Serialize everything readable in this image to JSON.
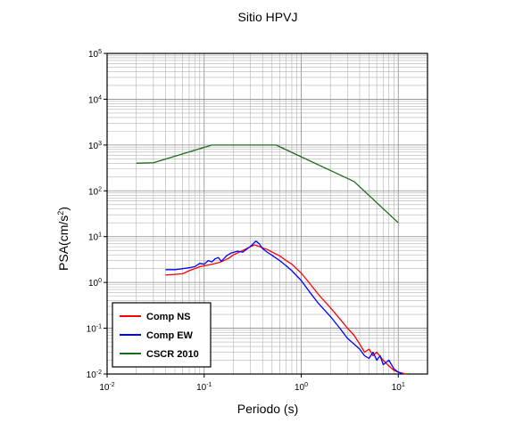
{
  "chart_data": {
    "type": "line",
    "title": "Sitio HPVJ",
    "xlabel": "Periodo (s)",
    "ylabel": {
      "base": "PSA(cm/s",
      "exp": "2",
      "close": ")"
    },
    "xscale": "log",
    "yscale": "log",
    "xlim": [
      0.01,
      20
    ],
    "ylim": [
      0.01,
      100000
    ],
    "grid": true,
    "legend_position": "bottom-left",
    "x_ticks": [
      {
        "base": "10",
        "exp": "-2",
        "value": 0.01
      },
      {
        "base": "10",
        "exp": "-1",
        "value": 0.1
      },
      {
        "base": "10",
        "exp": "0",
        "value": 1
      },
      {
        "base": "10",
        "exp": "1",
        "value": 10
      }
    ],
    "y_ticks": [
      {
        "base": "10",
        "exp": "-2",
        "value": 0.01
      },
      {
        "base": "10",
        "exp": "-1",
        "value": 0.1
      },
      {
        "base": "10",
        "exp": "0",
        "value": 1
      },
      {
        "base": "10",
        "exp": "1",
        "value": 10
      },
      {
        "base": "10",
        "exp": "2",
        "value": 100
      },
      {
        "base": "10",
        "exp": "3",
        "value": 1000
      },
      {
        "base": "10",
        "exp": "4",
        "value": 10000
      },
      {
        "base": "10",
        "exp": "5",
        "value": 100000
      }
    ],
    "series": [
      {
        "name": "Comp NS",
        "color": "#ff0000",
        "points": [
          [
            0.04,
            1.45
          ],
          [
            0.05,
            1.5
          ],
          [
            0.06,
            1.55
          ],
          [
            0.07,
            1.8
          ],
          [
            0.08,
            2.0
          ],
          [
            0.09,
            2.2
          ],
          [
            0.1,
            2.3
          ],
          [
            0.12,
            2.5
          ],
          [
            0.14,
            2.7
          ],
          [
            0.16,
            3.0
          ],
          [
            0.18,
            3.4
          ],
          [
            0.2,
            4.0
          ],
          [
            0.23,
            4.6
          ],
          [
            0.26,
            5.2
          ],
          [
            0.3,
            6.0
          ],
          [
            0.33,
            6.6
          ],
          [
            0.36,
            6.2
          ],
          [
            0.4,
            5.7
          ],
          [
            0.45,
            5.2
          ],
          [
            0.5,
            4.6
          ],
          [
            0.6,
            3.8
          ],
          [
            0.7,
            3.0
          ],
          [
            0.8,
            2.5
          ],
          [
            1.0,
            1.6
          ],
          [
            1.2,
            1.0
          ],
          [
            1.5,
            0.55
          ],
          [
            2.0,
            0.28
          ],
          [
            2.5,
            0.16
          ],
          [
            3.0,
            0.1
          ],
          [
            3.5,
            0.07
          ],
          [
            4.0,
            0.045
          ],
          [
            4.5,
            0.03
          ],
          [
            5.0,
            0.035
          ],
          [
            5.5,
            0.025
          ],
          [
            6.0,
            0.03
          ],
          [
            7.0,
            0.02
          ],
          [
            8.0,
            0.015
          ],
          [
            9.0,
            0.012
          ],
          [
            10.0,
            0.011
          ],
          [
            12.0,
            0.01
          ]
        ]
      },
      {
        "name": "Comp EW",
        "color": "#0000ff",
        "points": [
          [
            0.04,
            1.9
          ],
          [
            0.05,
            1.9
          ],
          [
            0.06,
            2.0
          ],
          [
            0.07,
            2.1
          ],
          [
            0.08,
            2.2
          ],
          [
            0.09,
            2.6
          ],
          [
            0.1,
            2.5
          ],
          [
            0.11,
            3.0
          ],
          [
            0.12,
            2.8
          ],
          [
            0.13,
            3.3
          ],
          [
            0.14,
            3.5
          ],
          [
            0.15,
            2.9
          ],
          [
            0.17,
            3.8
          ],
          [
            0.19,
            4.4
          ],
          [
            0.22,
            4.8
          ],
          [
            0.25,
            4.6
          ],
          [
            0.28,
            5.5
          ],
          [
            0.31,
            6.5
          ],
          [
            0.34,
            8.0
          ],
          [
            0.37,
            7.0
          ],
          [
            0.4,
            5.5
          ],
          [
            0.45,
            4.5
          ],
          [
            0.5,
            3.9
          ],
          [
            0.6,
            3.0
          ],
          [
            0.7,
            2.3
          ],
          [
            0.8,
            1.8
          ],
          [
            1.0,
            1.1
          ],
          [
            1.2,
            0.65
          ],
          [
            1.5,
            0.35
          ],
          [
            2.0,
            0.18
          ],
          [
            2.5,
            0.1
          ],
          [
            3.0,
            0.06
          ],
          [
            3.5,
            0.045
          ],
          [
            4.0,
            0.035
          ],
          [
            4.5,
            0.025
          ],
          [
            5.0,
            0.022
          ],
          [
            5.5,
            0.03
          ],
          [
            6.0,
            0.02
          ],
          [
            6.5,
            0.025
          ],
          [
            7.0,
            0.016
          ],
          [
            8.0,
            0.02
          ],
          [
            9.0,
            0.013
          ],
          [
            10.0,
            0.011
          ],
          [
            11.0,
            0.01
          ]
        ]
      },
      {
        "name": "CSCR 2010",
        "color": "#1a6b1a",
        "points": [
          [
            0.02,
            400
          ],
          [
            0.03,
            410
          ],
          [
            0.12,
            1000
          ],
          [
            0.55,
            1000
          ],
          [
            3.5,
            160
          ],
          [
            10.0,
            20
          ]
        ]
      }
    ]
  }
}
